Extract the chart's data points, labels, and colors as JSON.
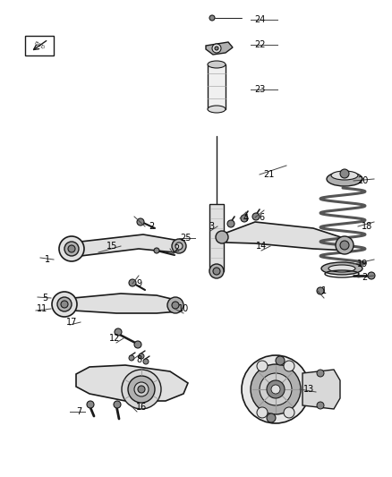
{
  "bg_color": "#ffffff",
  "lc": "#1a1a1a",
  "fc_light": "#e0e0e0",
  "fc_mid": "#b0b0b0",
  "fc_dark": "#888888",
  "fig_w": 4.38,
  "fig_h": 5.33,
  "dpi": 100,
  "label_fs": 7,
  "labels": [
    [
      "24",
      280,
      22,
      310,
      22,
      "left"
    ],
    [
      "22",
      280,
      50,
      310,
      50,
      "left"
    ],
    [
      "23",
      280,
      100,
      310,
      100,
      "left"
    ],
    [
      "21",
      290,
      195,
      320,
      185,
      "left"
    ],
    [
      "20",
      395,
      202,
      418,
      200,
      "left"
    ],
    [
      "18",
      400,
      253,
      418,
      248,
      "left"
    ],
    [
      "19",
      395,
      295,
      418,
      290,
      "left"
    ],
    [
      "25",
      218,
      266,
      200,
      266,
      "right"
    ],
    [
      "15",
      135,
      275,
      110,
      282,
      "right"
    ],
    [
      "1",
      60,
      290,
      45,
      288,
      "right"
    ],
    [
      "2",
      162,
      253,
      150,
      242,
      "left"
    ],
    [
      "2",
      190,
      278,
      195,
      285,
      "left"
    ],
    [
      "6",
      285,
      243,
      295,
      235,
      "left"
    ],
    [
      "4",
      268,
      244,
      275,
      237,
      "left"
    ],
    [
      "3",
      243,
      253,
      235,
      258,
      "right"
    ],
    [
      "14",
      302,
      275,
      292,
      280,
      "right"
    ],
    [
      "2",
      400,
      310,
      418,
      308,
      "left"
    ],
    [
      "1",
      355,
      325,
      362,
      333,
      "left"
    ],
    [
      "9",
      148,
      317,
      155,
      308,
      "left"
    ],
    [
      "5",
      57,
      333,
      42,
      332,
      "right"
    ],
    [
      "11",
      57,
      345,
      40,
      347,
      "right"
    ],
    [
      "17",
      90,
      360,
      78,
      363,
      "right"
    ],
    [
      "10",
      195,
      345,
      205,
      350,
      "left"
    ],
    [
      "12",
      138,
      378,
      130,
      383,
      "right"
    ],
    [
      "8",
      148,
      402,
      155,
      397,
      "left"
    ],
    [
      "16",
      148,
      455,
      153,
      460,
      "left"
    ],
    [
      "7",
      95,
      460,
      78,
      460,
      "right"
    ],
    [
      "13",
      335,
      435,
      353,
      438,
      "left"
    ]
  ]
}
